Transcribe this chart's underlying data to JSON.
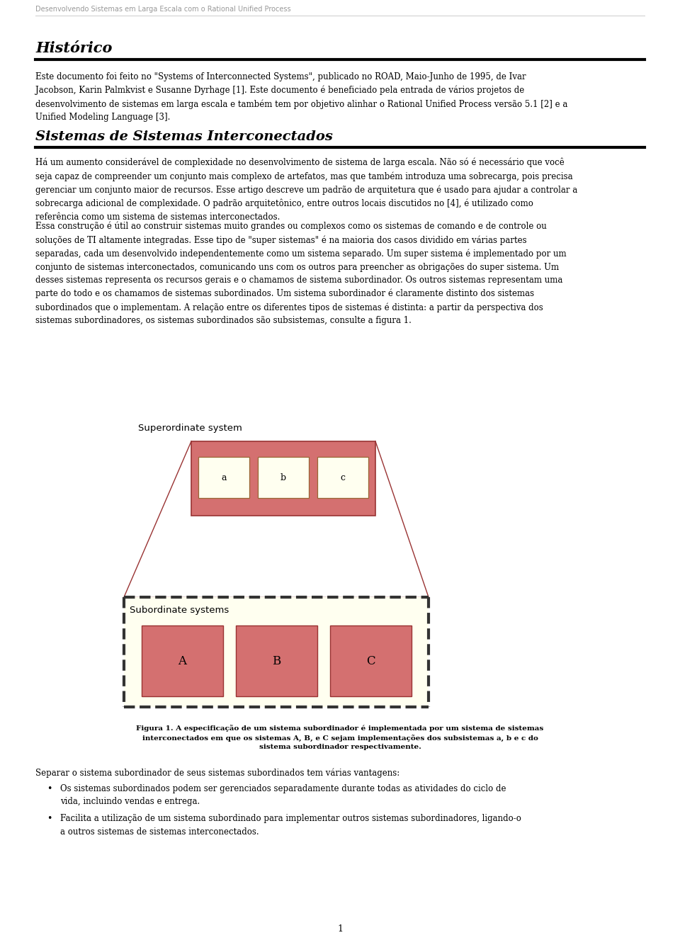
{
  "header_text": "Desenvolvendo Sistemas em Larga Escala com o Rational Unified Process",
  "header_color": "#999999",
  "header_fontsize": 7,
  "section1_title": "Histórico",
  "section1_fontsize": 15,
  "para1": "Este documento foi feito no \"Systems of Interconnected Systems\", publicado no ROAD, Maio-Junho de 1995, de Ivar\nJacobson, Karin Palmkvist e Susanne Dyrhage [1]. Este documento é beneficiado pela entrada de vários projetos de\ndesenvolvimento de sistemas em larga escala e também tem por objetivo alinhar o Rational Unified Process versão 5.1 [2] e a\nUnified Modeling Language [3].",
  "para1_fontsize": 8.5,
  "section2_title": "Sistemas de Sistemas Interconectados",
  "section2_fontsize": 14,
  "para2": "Há um aumento considerável de complexidade no desenvolvimento de sistema de larga escala. Não só é necessário que você\nseja capaz de compreender um conjunto mais complexo de artefatos, mas que também introduza uma sobrecarga, pois precisa\ngerenciar um conjunto maior de recursos. Esse artigo descreve um padrão de arquitetura que é usado para ajudar a controlar a\nsobrecarga adicional de complexidade. O padrão arquitetônico, entre outros locais discutidos no [4], é utilizado como\nreferência como um sistema de sistemas interconectados.",
  "para2_fontsize": 8.5,
  "para3a": "Essa construção é útil ao construir sistemas muito grandes ou complexos como os sistemas de comando e de controle ou\nsoluções de TI altamente integradas. Esse tipo de \"super sistemas\" é na maioria dos casos dividido em várias partes\nseparadas, cada um desenvolvido independentemente como um sistema separado. Um super sistema é implementado por um\nconjunto de sistemas interconectados, comunicando uns com os outros para preencher as obrigações do super sistema. Um\ndesses sistemas representa os recursos gerais e o chamamos de ",
  "para3b": "sistema subordinador",
  "para3c": ". Os outros sistemas representam uma\nparte do todo e os chamamos de ",
  "para3d": "sistemas subordinados",
  "para3e": ". Um sistema subordinador é claramente distinto dos sistemas\nsubordinados que o implementam. A relação entre os diferentes tipos de sistemas é distinta: a partir da perspectiva dos\nsistemas subordinadores, os sistemas subordinados são subsistemas, consulte a figura 1.",
  "para3_fontsize": 8.5,
  "fig_caption": "Figura 1. A especificação de um sistema subordinador é implementada por um sistema de sistemas\ninterconectados em que os sistemas A, B, e C sejam implementações dos subsistemas a, b e c do\nsistema subordinador respectivamente.",
  "fig_caption_fontsize": 7.5,
  "para4": "Separar o sistema subordinador de seus sistemas subordinados tem várias vantagens:",
  "para4_fontsize": 8.5,
  "bullet1": "Os sistemas subordinados podem ser gerenciados separadamente durante todas as atividades do ciclo de\nvida, incluindo vendas e entrega.",
  "bullet2": "Facilita a utilização de um sistema subordinado para implementar outros sistemas subordinadores, ligando-o\na outros sistemas de sistemas interconectados.",
  "bullet_fontsize": 8.5,
  "page_num": "1",
  "bg_color": "#ffffff",
  "text_color": "#000000",
  "superordinate_label": "Superordinate system",
  "subordinate_label": "Subordinate systems",
  "small_box_labels": [
    "a",
    "b",
    "c"
  ],
  "large_box_labels": [
    "A",
    "B",
    "C"
  ],
  "red_fill": "#d47070",
  "cream_fill": "#fffff0",
  "small_box_fill": "#fffff0",
  "trap_line_color": "#993333",
  "dashed_border_color": "#333333",
  "hr_color": "#000000"
}
